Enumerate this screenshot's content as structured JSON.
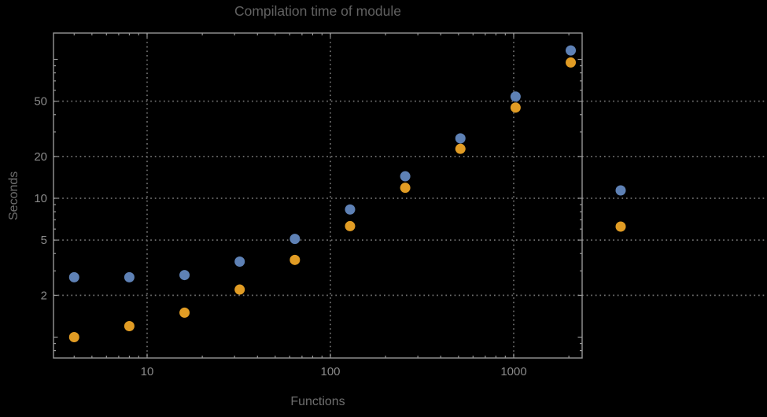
{
  "chart_data": {
    "type": "scatter",
    "title": "Compilation time of module",
    "xlabel": "Functions",
    "ylabel": "Seconds",
    "x_scale": "log",
    "y_scale": "log",
    "x": [
      4,
      8,
      16,
      32,
      64,
      128,
      256,
      512,
      1024,
      2048
    ],
    "series": [
      {
        "name": "series-1",
        "color": "#5e81b5",
        "values": [
          2.7,
          2.7,
          2.8,
          3.5,
          5.1,
          8.3,
          14.4,
          27,
          54,
          116
        ]
      },
      {
        "name": "series-2",
        "color": "#e19c24",
        "values": [
          1.0,
          1.2,
          1.5,
          2.2,
          3.6,
          6.3,
          11.9,
          22.7,
          45,
          95
        ]
      }
    ],
    "x_tick_labels": [
      10,
      100,
      1000
    ],
    "y_tick_labels": [
      2,
      5,
      10,
      20,
      50
    ],
    "x_minor_ticks": [
      4,
      5,
      6,
      7,
      8,
      9,
      20,
      30,
      40,
      50,
      60,
      70,
      80,
      90,
      200,
      300,
      400,
      500,
      600,
      700,
      800,
      900,
      2000
    ],
    "y_major_unlabeled_ticks": [
      1,
      100
    ],
    "y_minor_ticks": [
      0.8,
      0.9,
      3,
      4,
      6,
      7,
      8,
      9,
      30,
      40,
      60,
      70,
      80,
      90
    ],
    "x_range": [
      3.1,
      2360
    ],
    "y_range": [
      0.71,
      155
    ],
    "grid": "dotted",
    "legend_position": "right-outside"
  },
  "legend": {
    "items": [
      {
        "name": "series-1-marker",
        "color": "#5e81b5"
      },
      {
        "name": "series-2-marker",
        "color": "#e19c24"
      }
    ]
  },
  "colors": {
    "background": "#000000",
    "frame": "#969696",
    "grid": "#6e6e6e",
    "tick_label": "#8a8a8a",
    "title": "#616161",
    "axis_label": "#6f6f6f",
    "series1": "#5e81b5",
    "series2": "#e19c24"
  }
}
